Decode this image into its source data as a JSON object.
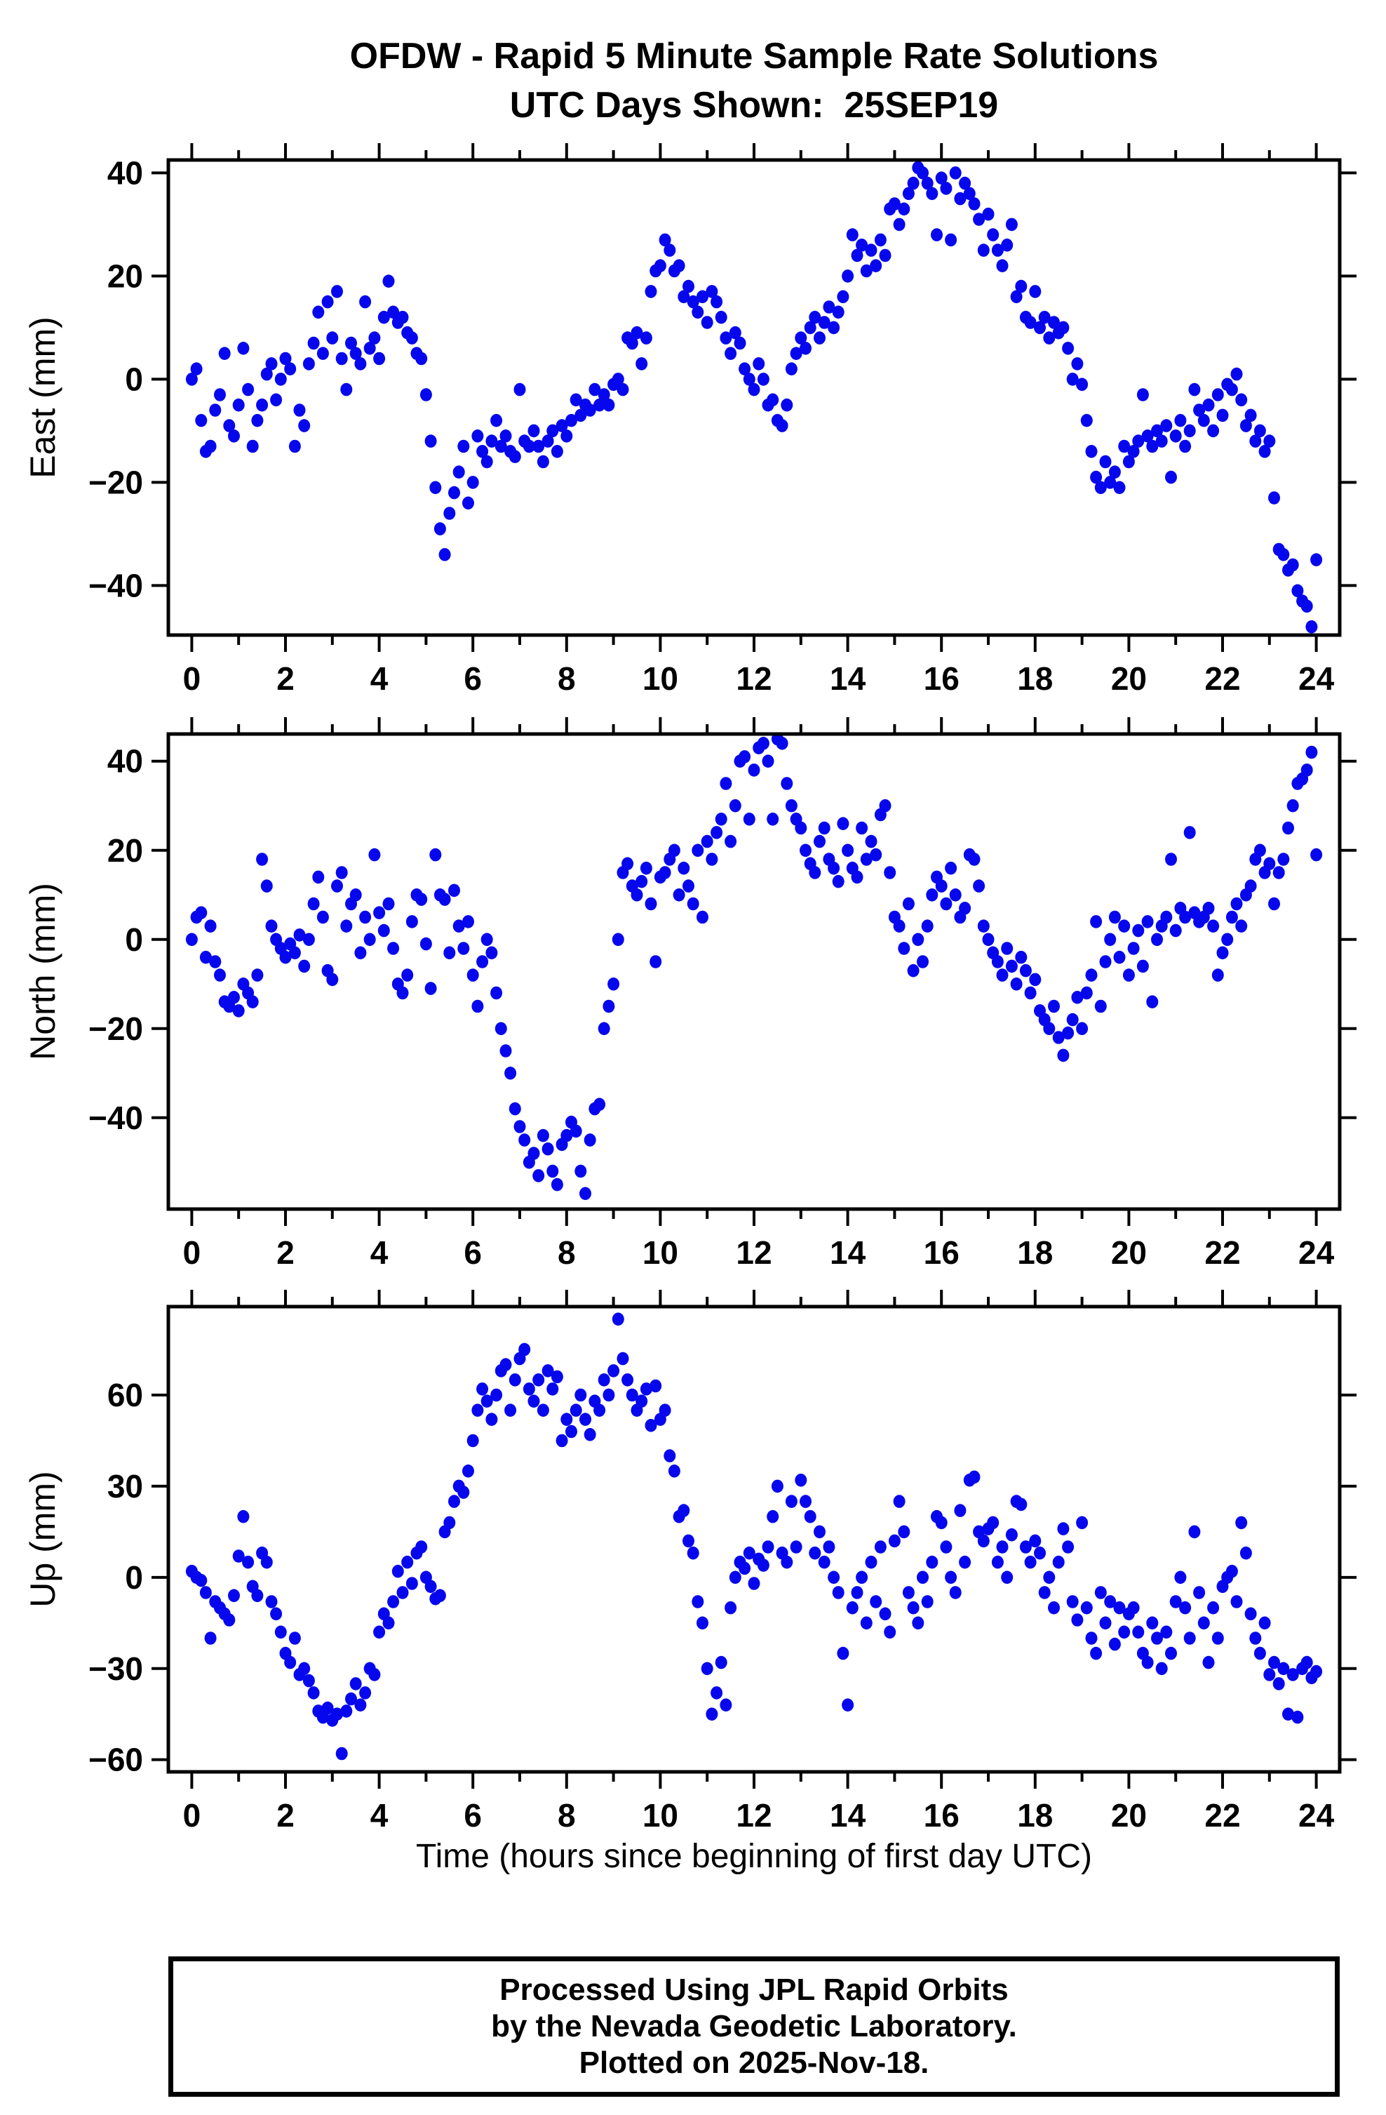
{
  "title": {
    "line1": "OFDW - Rapid 5 Minute Sample Rate Solutions",
    "line2": "UTC Days Shown:  25SEP19"
  },
  "footer": {
    "line1": "Processed Using JPL Rapid Orbits",
    "line2": "by the Nevada Geodetic Laboratory.",
    "line3": "Plotted on 2025-Nov-18."
  },
  "chart_data": {
    "type": "scatter",
    "station": "OFDW",
    "xlabel": "Time (hours since beginning of first day UTC)",
    "xlim": [
      -0.5,
      24.5
    ],
    "x_ticks": [
      0,
      2,
      4,
      6,
      8,
      10,
      12,
      14,
      16,
      18,
      20,
      22,
      24
    ],
    "x_minor_ticks": [
      1,
      3,
      5,
      7,
      9,
      11,
      13,
      15,
      17,
      19,
      21,
      23
    ],
    "grid": "off",
    "legend": "none",
    "marker_color": "#0707EE",
    "x_start": 0,
    "x_step": 0.1,
    "panels": [
      {
        "ylabel": "East (mm)",
        "ylim": [
          -49.6,
          42.5
        ],
        "y_ticks": [
          -40,
          -20,
          0,
          20,
          40
        ],
        "y": [
          0,
          2,
          -8,
          -14,
          -13,
          -6,
          -3,
          5,
          -9,
          -11,
          -5,
          6,
          -2,
          -13,
          -8,
          -5,
          1,
          3,
          -4,
          0,
          4,
          2,
          -13,
          -6,
          -9,
          3,
          7,
          13,
          5,
          15,
          8,
          17,
          4,
          -2,
          7,
          5,
          3,
          15,
          6,
          8,
          4,
          12,
          19,
          13,
          11,
          12,
          9,
          8,
          5,
          4,
          -3,
          -12,
          -21,
          -29,
          -34,
          -26,
          -22,
          -18,
          -13,
          -24,
          -20,
          -11,
          -14,
          -16,
          -12,
          -8,
          -13,
          -11,
          -14,
          -15,
          -2,
          -12,
          -13,
          -10,
          -13,
          -16,
          -12,
          -10,
          -14,
          -9,
          -11,
          -8,
          -4,
          -7,
          -5,
          -6,
          -2,
          -5,
          -3,
          -5,
          -1,
          0,
          -2,
          8,
          7,
          9,
          3,
          8,
          17,
          21,
          22,
          27,
          25,
          21,
          22,
          16,
          18,
          15,
          13,
          16,
          11,
          17,
          15,
          12,
          8,
          5,
          9,
          7,
          2,
          0,
          -2,
          3,
          0,
          -5,
          -4,
          -8,
          -9,
          -5,
          2,
          5,
          8,
          6,
          10,
          12,
          8,
          11,
          14,
          10,
          13,
          16,
          20,
          28,
          24,
          26,
          21,
          25,
          22,
          27,
          24,
          33,
          34,
          30,
          33,
          36,
          38,
          41,
          40,
          38,
          36,
          28,
          39,
          37,
          27,
          40,
          35,
          38,
          36,
          34,
          31,
          25,
          32,
          28,
          25,
          22,
          26,
          30,
          16,
          18,
          12,
          11,
          17,
          10,
          12,
          8,
          11,
          9,
          10,
          6,
          0,
          3,
          -1,
          -8,
          -14,
          -19,
          -21,
          -16,
          -20,
          -18,
          -21,
          -13,
          -16,
          -14,
          -12,
          -3,
          -11,
          -13,
          -10,
          -12,
          -9,
          -19,
          -11,
          -8,
          -13,
          -10,
          -2,
          -6,
          -8,
          -5,
          -10,
          -3,
          -7,
          -1,
          -2,
          1,
          -4,
          -9,
          -7,
          -12,
          -10,
          -14,
          -12,
          -23,
          -33,
          -34,
          -37,
          -36,
          -41,
          -43,
          -44,
          -48,
          -35
        ]
      },
      {
        "ylabel": "North (mm)",
        "ylim": [
          -60.5,
          46.1
        ],
        "y_ticks": [
          -40,
          -20,
          0,
          20,
          40
        ],
        "y": [
          0,
          5,
          6,
          -4,
          3,
          -5,
          -8,
          -14,
          -15,
          -13,
          -16,
          -10,
          -12,
          -14,
          -8,
          18,
          12,
          3,
          0,
          -2,
          -4,
          -1,
          -3,
          1,
          -6,
          0,
          8,
          14,
          5,
          -7,
          -9,
          12,
          15,
          3,
          8,
          10,
          -3,
          5,
          0,
          19,
          6,
          2,
          8,
          -2,
          -10,
          -12,
          -8,
          4,
          10,
          9,
          -1,
          -11,
          19,
          10,
          9,
          -3,
          11,
          3,
          -2,
          4,
          -8,
          -15,
          -5,
          0,
          -3,
          -12,
          -20,
          -25,
          -30,
          -38,
          -42,
          -45,
          -50,
          -48,
          -53,
          -44,
          -47,
          -52,
          -55,
          -46,
          -44,
          -41,
          -43,
          -52,
          -57,
          -45,
          -38,
          -37,
          -20,
          -15,
          -10,
          0,
          15,
          17,
          12,
          10,
          13,
          16,
          8,
          -5,
          14,
          15,
          18,
          20,
          10,
          16,
          12,
          8,
          20,
          5,
          22,
          18,
          24,
          27,
          35,
          22,
          30,
          40,
          41,
          27,
          38,
          43,
          44,
          40,
          27,
          45,
          44,
          35,
          30,
          27,
          25,
          20,
          17,
          15,
          22,
          25,
          18,
          16,
          13,
          26,
          20,
          16,
          14,
          25,
          18,
          22,
          19,
          28,
          30,
          15,
          5,
          3,
          -2,
          8,
          -7,
          0,
          -5,
          3,
          10,
          14,
          12,
          8,
          16,
          10,
          5,
          7,
          19,
          18,
          12,
          3,
          0,
          -3,
          -5,
          -8,
          -2,
          -6,
          -10,
          -4,
          -7,
          -12,
          -9,
          -16,
          -18,
          -20,
          -15,
          -22,
          -26,
          -21,
          -18,
          -13,
          -20,
          -12,
          -8,
          4,
          -15,
          -5,
          0,
          5,
          -4,
          3,
          -8,
          -2,
          2,
          -6,
          4,
          -14,
          0,
          3,
          5,
          18,
          2,
          7,
          5,
          24,
          6,
          4,
          5,
          7,
          3,
          -8,
          -3,
          0,
          5,
          8,
          3,
          10,
          12,
          18,
          20,
          15,
          17,
          8,
          15,
          18,
          25,
          30,
          35,
          36,
          38,
          42,
          19
        ]
      },
      {
        "ylabel": "Up (mm)",
        "ylim": [
          -64.0,
          89.1
        ],
        "y_ticks": [
          -60,
          -30,
          0,
          30,
          60
        ],
        "y": [
          2,
          0,
          -1,
          -5,
          -20,
          -8,
          -10,
          -12,
          -14,
          -6,
          7,
          20,
          5,
          -3,
          -6,
          8,
          5,
          -8,
          -12,
          -18,
          -25,
          -28,
          -20,
          -32,
          -30,
          -34,
          -38,
          -44,
          -46,
          -43,
          -47,
          -45,
          -58,
          -44,
          -40,
          -35,
          -42,
          -38,
          -30,
          -32,
          -18,
          -12,
          -15,
          -8,
          2,
          -5,
          5,
          -2,
          8,
          10,
          0,
          -3,
          -7,
          -6,
          15,
          18,
          25,
          30,
          28,
          35,
          45,
          55,
          62,
          58,
          52,
          60,
          68,
          70,
          55,
          65,
          72,
          75,
          62,
          58,
          65,
          55,
          68,
          62,
          66,
          45,
          52,
          48,
          55,
          60,
          52,
          47,
          58,
          55,
          65,
          60,
          68,
          85,
          72,
          65,
          60,
          55,
          58,
          62,
          50,
          63,
          52,
          55,
          40,
          35,
          20,
          22,
          12,
          8,
          -8,
          -15,
          -30,
          -45,
          -38,
          -28,
          -42,
          -10,
          0,
          5,
          3,
          8,
          -2,
          6,
          4,
          10,
          20,
          30,
          8,
          5,
          25,
          10,
          32,
          25,
          20,
          8,
          15,
          5,
          10,
          0,
          -5,
          -25,
          -42,
          -10,
          -5,
          0,
          -15,
          5,
          -8,
          10,
          -12,
          -18,
          12,
          25,
          15,
          -5,
          -10,
          -15,
          0,
          -8,
          5,
          20,
          18,
          10,
          0,
          -5,
          22,
          5,
          32,
          33,
          15,
          12,
          16,
          18,
          5,
          10,
          0,
          14,
          25,
          24,
          10,
          5,
          12,
          8,
          -5,
          0,
          -10,
          5,
          16,
          10,
          -8,
          -14,
          18,
          -10,
          -20,
          -25,
          -5,
          -15,
          -8,
          -22,
          -10,
          -18,
          -12,
          -10,
          -18,
          -25,
          -28,
          -15,
          -20,
          -30,
          -18,
          -25,
          -8,
          0,
          -10,
          -20,
          15,
          -5,
          -15,
          -28,
          -10,
          -20,
          -3,
          0,
          2,
          -8,
          18,
          8,
          -12,
          -20,
          -25,
          -15,
          -32,
          -28,
          -35,
          -30,
          -45,
          -32,
          -46,
          -30,
          -28,
          -33,
          -31
        ]
      }
    ]
  }
}
